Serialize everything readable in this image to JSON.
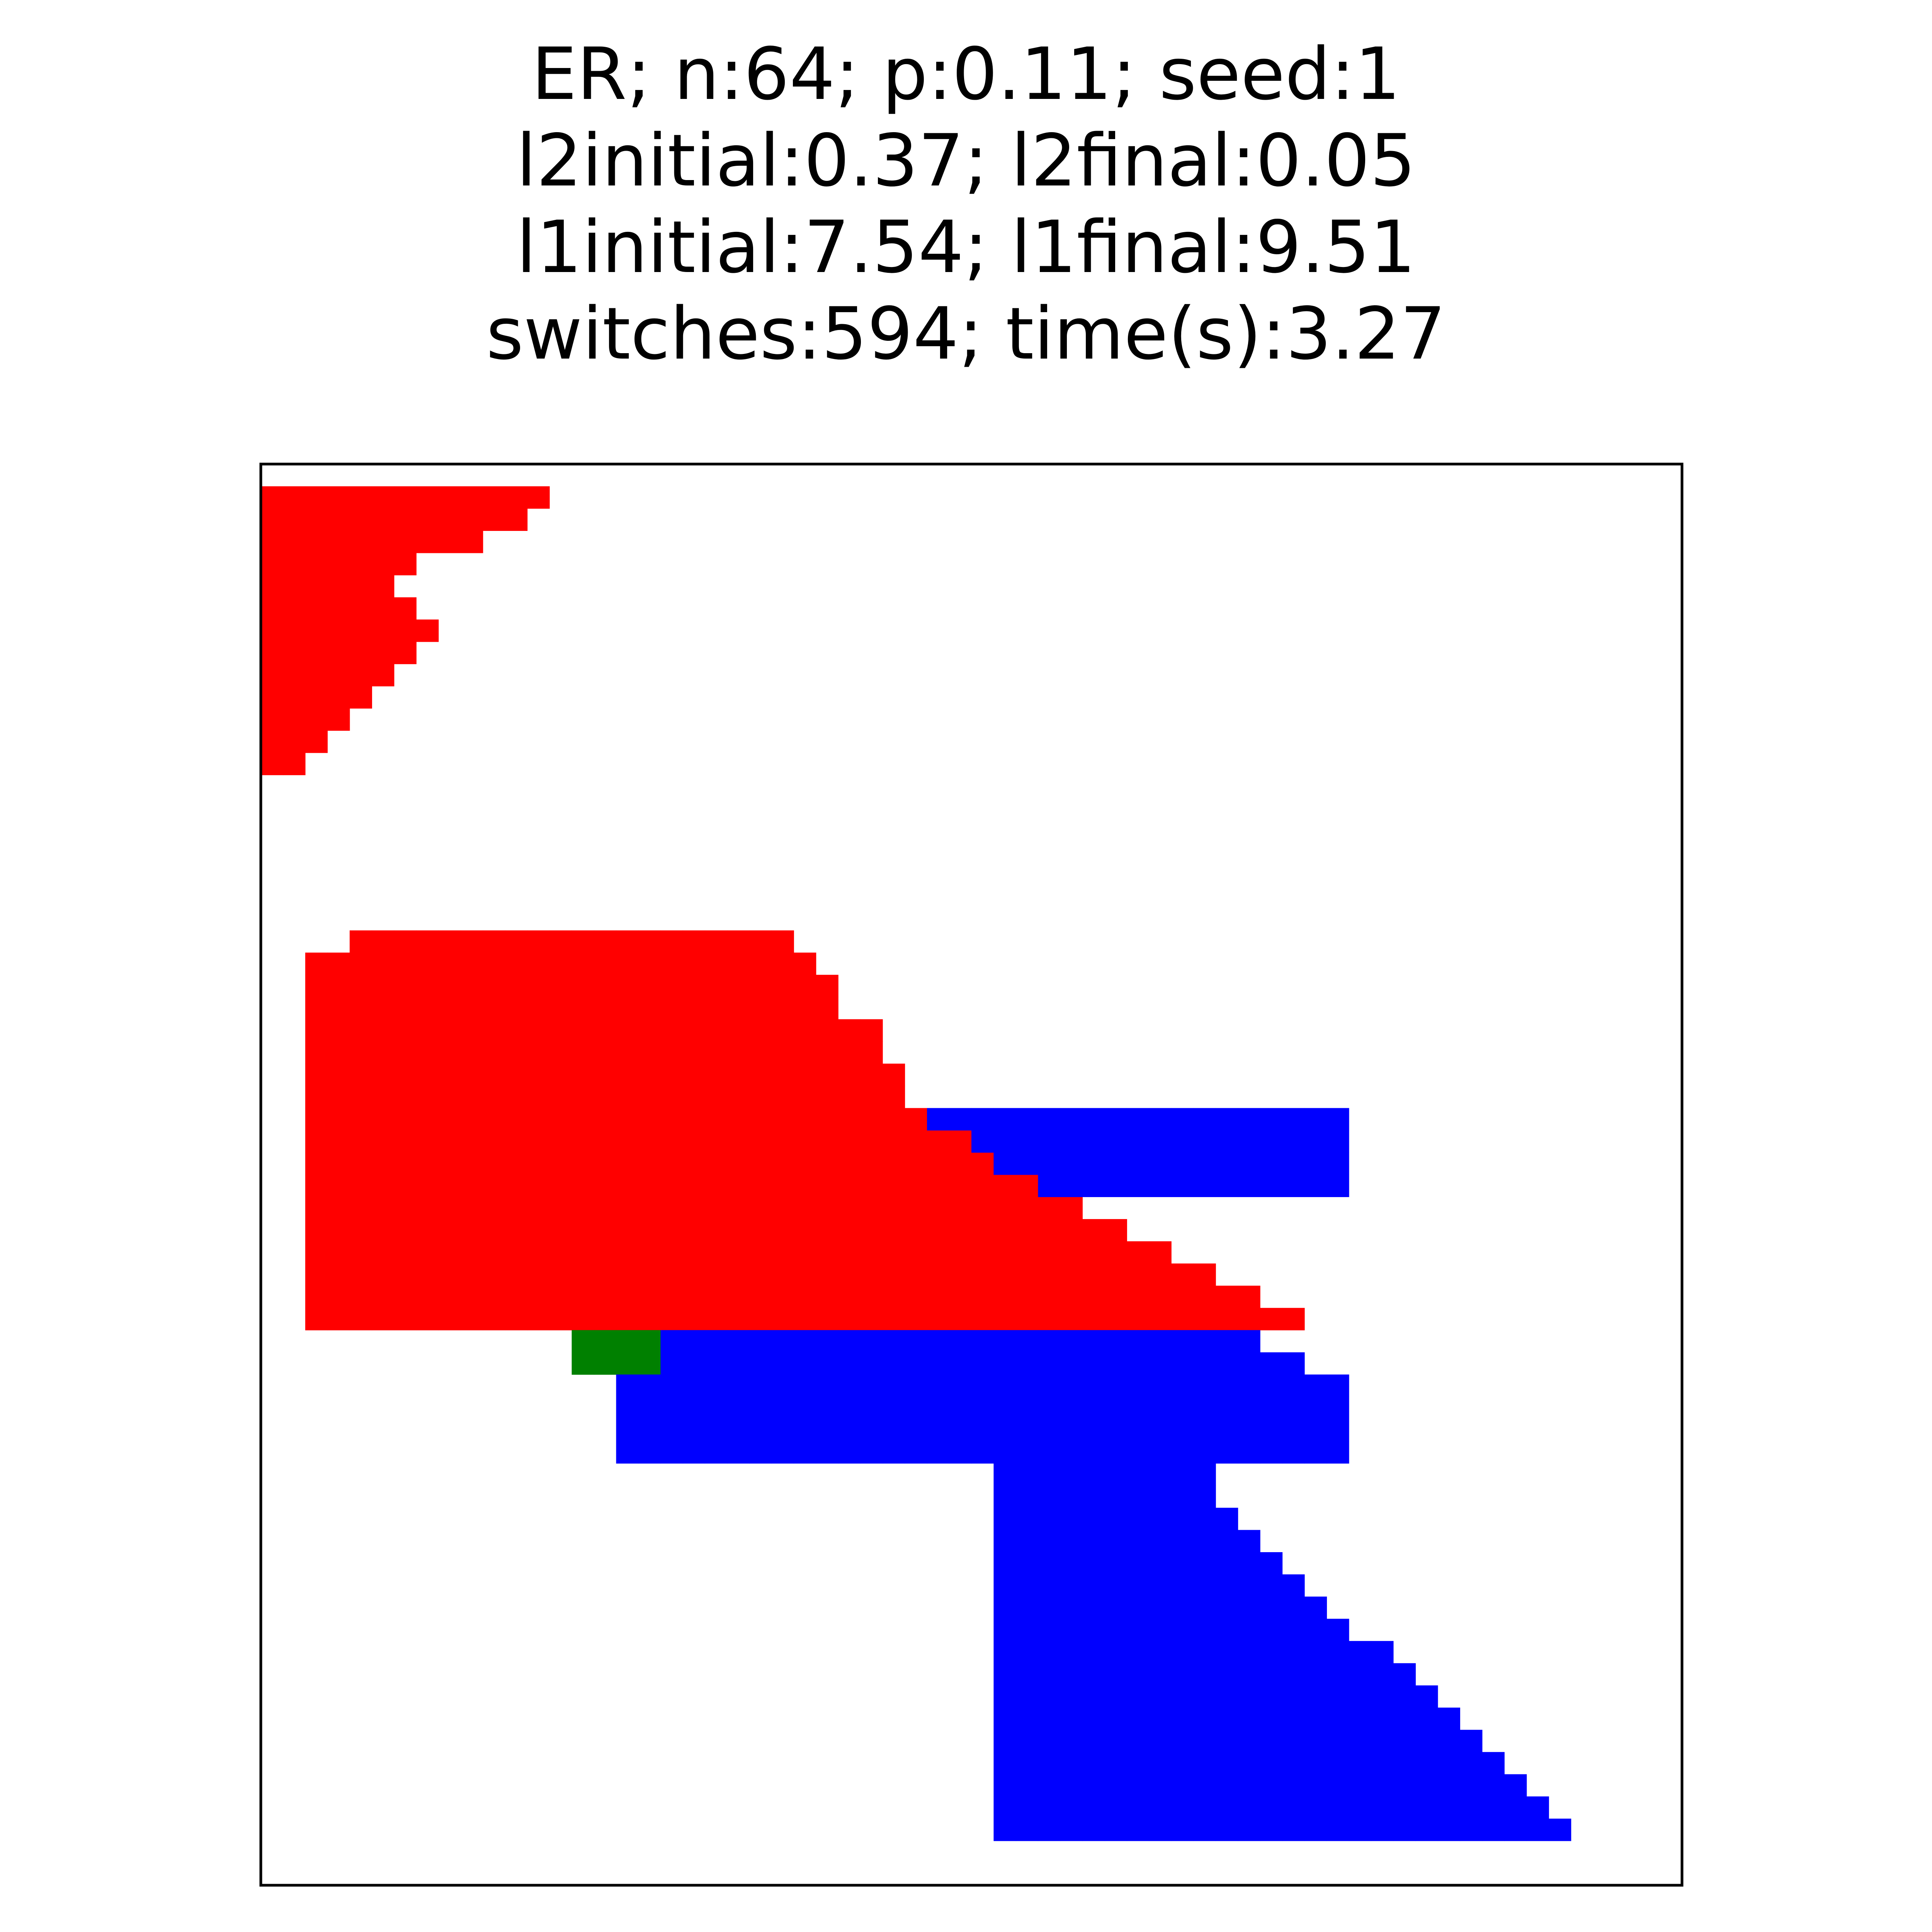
{
  "title_lines": [
    "ER; n:64; p:0.11; seed:1",
    "l2initial:0.37; l2final:0.05",
    "l1initial:7.54; l1final:9.51",
    "switches:594; time(s):3.27"
  ],
  "chart_data": {
    "type": "heatmap",
    "n": 64,
    "axes_ticks": "none",
    "grid": false,
    "colors": {
      "red": "#ff0000",
      "green": "#008000",
      "blue": "#0000ff",
      "background": "#ffffff",
      "frame": "#000000"
    },
    "cells": {
      "red": [
        [
          1,
          0,
          12
        ],
        [
          2,
          0,
          1
        ],
        [
          2,
          2,
          11
        ],
        [
          3,
          0,
          2
        ],
        [
          3,
          3,
          9
        ],
        [
          4,
          0,
          3
        ],
        [
          4,
          4,
          6
        ],
        [
          5,
          0,
          4
        ],
        [
          5,
          5,
          4
        ],
        [
          6,
          0,
          5
        ],
        [
          6,
          6,
          2
        ],
        [
          7,
          0,
          6
        ],
        [
          7,
          7,
          1
        ],
        [
          8,
          0,
          6
        ],
        [
          9,
          0,
          5
        ],
        [
          10,
          0,
          4
        ],
        [
          11,
          0,
          3
        ],
        [
          12,
          0,
          2
        ],
        [
          13,
          0,
          1
        ],
        [
          22,
          2,
          22
        ],
        [
          23,
          2,
          22
        ],
        [
          24,
          2,
          24
        ],
        [
          25,
          2,
          24
        ],
        [
          26,
          2,
          26
        ],
        [
          27,
          2,
          26
        ],
        [
          28,
          2,
          28
        ],
        [
          29,
          2,
          28
        ],
        [
          30,
          2,
          30
        ],
        [
          31,
          2,
          32
        ],
        [
          32,
          2,
          34
        ],
        [
          33,
          2,
          36
        ],
        [
          34,
          2,
          38
        ],
        [
          35,
          2,
          40
        ],
        [
          36,
          2,
          42
        ],
        [
          37,
          2,
          44
        ],
        [
          38,
          2,
          46
        ],
        [
          21,
          4,
          22
        ],
        [
          21,
          5,
          23
        ],
        [
          22,
          5,
          23
        ],
        [
          22,
          6,
          24
        ],
        [
          23,
          6,
          25
        ],
        [
          24,
          7,
          25
        ],
        [
          25,
          8,
          26
        ],
        [
          25,
          9,
          27
        ],
        [
          26,
          10,
          27
        ],
        [
          27,
          10,
          28
        ],
        [
          28,
          10,
          28
        ],
        [
          30,
          10,
          31
        ],
        [
          31,
          10,
          31
        ],
        [
          32,
          10,
          31
        ],
        [
          33,
          10,
          31
        ],
        [
          34,
          10,
          31
        ],
        [
          27,
          11,
          28
        ],
        [
          28,
          11,
          28
        ],
        [
          29,
          11,
          29
        ],
        [
          30,
          11,
          30
        ],
        [
          31,
          11,
          31
        ],
        [
          32,
          11,
          32
        ],
        [
          32,
          12,
          32
        ],
        [
          33,
          11,
          33
        ],
        [
          33,
          12,
          33
        ],
        [
          34,
          11,
          33
        ],
        [
          34,
          12,
          33
        ],
        [
          21,
          15,
          14
        ],
        [
          21,
          16,
          14
        ],
        [
          22,
          16,
          14
        ],
        [
          22,
          17,
          14
        ],
        [
          23,
          17,
          14
        ],
        [
          23,
          18,
          13
        ],
        [
          24,
          18,
          13
        ],
        [
          24,
          19,
          13
        ],
        [
          25,
          19,
          13
        ],
        [
          26,
          19,
          13
        ],
        [
          27,
          19,
          13
        ],
        [
          28,
          19,
          13
        ]
      ],
      "green": [
        [
          24,
          11,
          13
        ],
        [
          35,
          11,
          35
        ],
        [
          36,
          11,
          35
        ],
        [
          37,
          11,
          35
        ],
        [
          38,
          11,
          35
        ],
        [
          35,
          14,
          13
        ],
        [
          36,
          14,
          15
        ],
        [
          37,
          14,
          16
        ],
        [
          38,
          14,
          17
        ],
        [
          39,
          14,
          17
        ],
        [
          40,
          14,
          17
        ],
        [
          23,
          20,
          23
        ],
        [
          22,
          20,
          22
        ],
        [
          22,
          21,
          23
        ]
      ],
      "blue": [
        [
          35,
          12,
          36
        ],
        [
          35,
          13,
          37
        ],
        [
          35,
          14,
          38
        ],
        [
          36,
          12,
          37
        ],
        [
          36,
          13,
          38
        ],
        [
          39,
          16,
          43
        ],
        [
          39,
          17,
          44
        ],
        [
          40,
          16,
          45
        ],
        [
          40,
          17,
          46
        ],
        [
          41,
          16,
          47
        ],
        [
          41,
          17,
          48
        ],
        [
          42,
          16,
          48
        ],
        [
          42,
          17,
          48
        ],
        [
          43,
          16,
          48
        ],
        [
          44,
          16,
          48
        ],
        [
          29,
          18,
          48
        ],
        [
          30,
          18,
          48
        ],
        [
          31,
          18,
          48
        ],
        [
          32,
          18,
          48
        ],
        [
          36,
          34,
          37
        ],
        [
          36,
          35,
          37
        ],
        [
          37,
          34,
          38
        ],
        [
          37,
          35,
          38
        ],
        [
          38,
          34,
          38
        ],
        [
          38,
          35,
          38
        ],
        [
          43,
          33,
          39
        ],
        [
          44,
          33,
          40
        ],
        [
          45,
          33,
          41
        ],
        [
          45,
          34,
          42
        ],
        [
          46,
          33,
          42
        ],
        [
          46,
          34,
          42
        ],
        [
          47,
          33,
          42
        ],
        [
          47,
          34,
          43
        ],
        [
          48,
          33,
          44
        ],
        [
          48,
          34,
          44
        ],
        [
          49,
          33,
          45
        ],
        [
          49,
          34,
          45
        ],
        [
          50,
          33,
          46
        ],
        [
          51,
          33,
          47
        ],
        [
          52,
          33,
          48
        ],
        [
          53,
          33,
          50
        ],
        [
          54,
          33,
          51
        ],
        [
          55,
          33,
          52
        ],
        [
          56,
          33,
          53
        ],
        [
          57,
          33,
          54
        ],
        [
          58,
          33,
          55
        ],
        [
          59,
          33,
          56
        ],
        [
          60,
          33,
          57
        ],
        [
          61,
          33,
          58
        ]
      ],
      "_note": "unused"
    }
  }
}
